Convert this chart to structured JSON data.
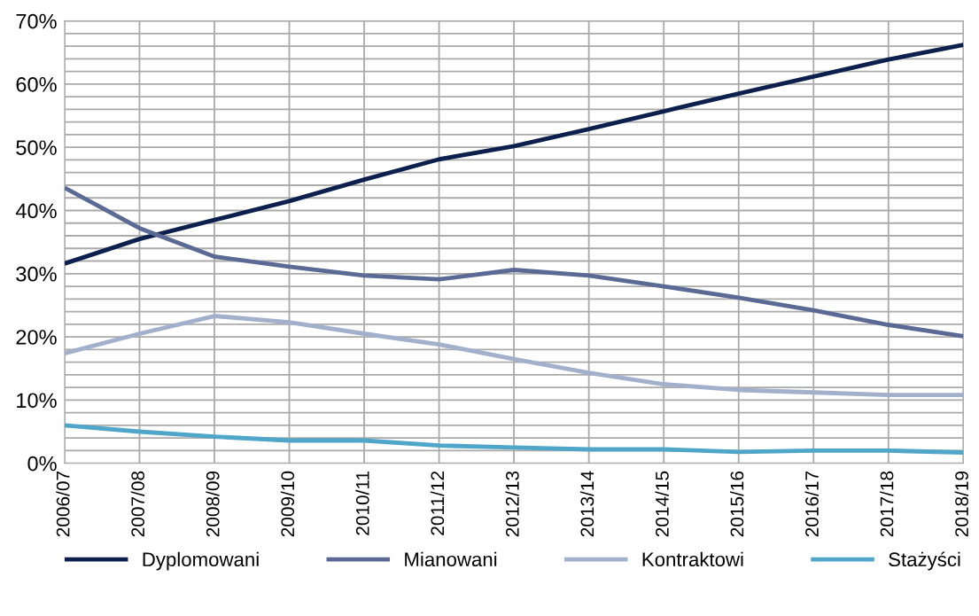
{
  "chart_data": {
    "type": "line",
    "categories": [
      "2006/07",
      "2007/08",
      "2008/09",
      "2009/10",
      "2010/11",
      "2011/12",
      "2012/13",
      "2013/14",
      "2014/15",
      "2015/16",
      "2016/17",
      "2017/18",
      "2018/19"
    ],
    "series": [
      {
        "name": "Dyplomowani",
        "color": "#0c1f4d",
        "values": [
          31.6,
          35.5,
          38.5,
          41.5,
          44.9,
          48.1,
          50.2,
          52.9,
          55.7,
          58.5,
          61.2,
          63.9,
          66.2
        ]
      },
      {
        "name": "Mianowani",
        "color": "#5a6a94",
        "values": [
          43.6,
          37.2,
          32.7,
          31.1,
          29.7,
          29.1,
          30.6,
          29.7,
          28.0,
          26.2,
          24.2,
          21.9,
          20.1
        ]
      },
      {
        "name": "Kontraktowi",
        "color": "#a3b0cc",
        "values": [
          17.4,
          20.5,
          23.3,
          22.3,
          20.5,
          18.8,
          16.5,
          14.3,
          12.5,
          11.6,
          11.2,
          10.8,
          10.8
        ]
      },
      {
        "name": "Stażyści",
        "color": "#4fa6c8",
        "values": [
          6.0,
          5.0,
          4.2,
          3.6,
          3.6,
          2.8,
          2.5,
          2.2,
          2.2,
          1.8,
          2.0,
          2.0,
          1.7
        ]
      }
    ],
    "ylim": [
      0,
      70
    ],
    "yticks": [
      {
        "value": 0,
        "label": "0%"
      },
      {
        "value": 2,
        "label": null
      },
      {
        "value": 4,
        "label": null
      },
      {
        "value": 6,
        "label": null
      },
      {
        "value": 8,
        "label": null
      },
      {
        "value": 10,
        "label": "10%"
      },
      {
        "value": 12,
        "label": null
      },
      {
        "value": 14,
        "label": null
      },
      {
        "value": 16,
        "label": null
      },
      {
        "value": 18,
        "label": null
      },
      {
        "value": 20,
        "label": "20%"
      },
      {
        "value": 22,
        "label": null
      },
      {
        "value": 24,
        "label": null
      },
      {
        "value": 26,
        "label": null
      },
      {
        "value": 28,
        "label": null
      },
      {
        "value": 30,
        "label": "30%"
      },
      {
        "value": 32,
        "label": null
      },
      {
        "value": 34,
        "label": null
      },
      {
        "value": 36,
        "label": null
      },
      {
        "value": 38,
        "label": null
      },
      {
        "value": 40,
        "label": "40%"
      },
      {
        "value": 42,
        "label": null
      },
      {
        "value": 44,
        "label": null
      },
      {
        "value": 46,
        "label": null
      },
      {
        "value": 48,
        "label": null
      },
      {
        "value": 50,
        "label": "50%"
      },
      {
        "value": 52,
        "label": null
      },
      {
        "value": 54,
        "label": null
      },
      {
        "value": 56,
        "label": null
      },
      {
        "value": 58,
        "label": null
      },
      {
        "value": 60,
        "label": "60%"
      },
      {
        "value": 62,
        "label": null
      },
      {
        "value": 64,
        "label": null
      },
      {
        "value": 66,
        "label": null
      },
      {
        "value": 68,
        "label": null
      },
      {
        "value": 70,
        "label": "70%"
      }
    ],
    "grid": true,
    "legend": "bottom",
    "marker": "none",
    "line_style": "solid"
  }
}
